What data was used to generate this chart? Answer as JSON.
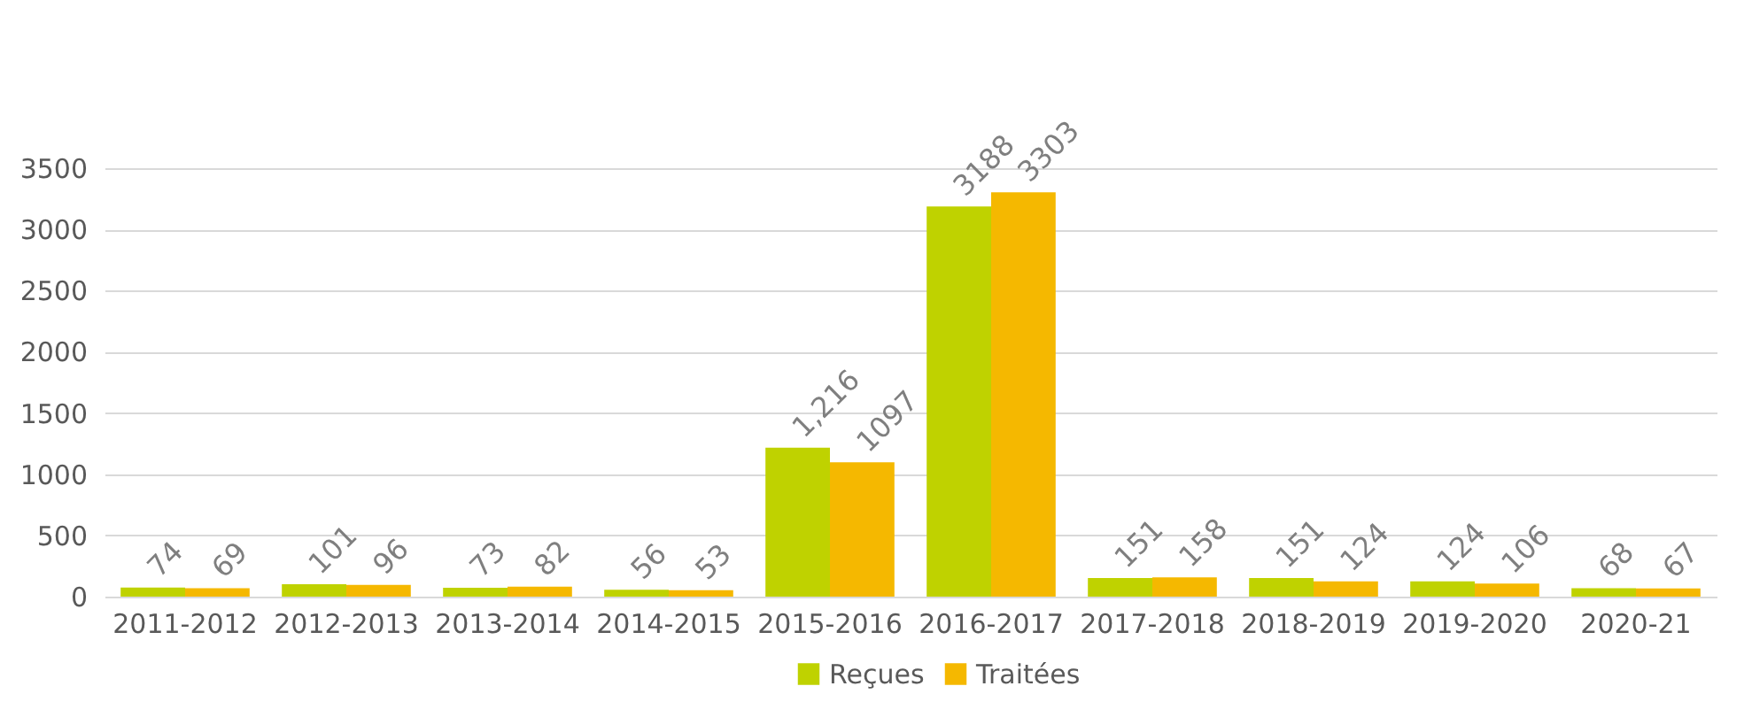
{
  "chart_data": {
    "type": "bar",
    "categories": [
      "2011-2012",
      "2012-2013",
      "2013-2014",
      "2014-2015",
      "2015-2016",
      "2016-2017",
      "2017-2018",
      "2018-2019",
      "2019-2020",
      "2020-21"
    ],
    "series": [
      {
        "name": "Reçues",
        "color": "#bfd200",
        "values": [
          74,
          101,
          73,
          56,
          1216,
          3188,
          151,
          151,
          124,
          68
        ],
        "value_labels": [
          "74",
          "101",
          "73",
          "56",
          "1,216",
          "3188",
          "151",
          "151",
          "124",
          "68"
        ]
      },
      {
        "name": "Traitées",
        "color": "#f5b800",
        "values": [
          69,
          96,
          82,
          53,
          1097,
          3303,
          158,
          124,
          106,
          67
        ],
        "value_labels": [
          "69",
          "96",
          "82",
          "53",
          "1097",
          "3303",
          "158",
          "124",
          "106",
          "67"
        ]
      }
    ],
    "ylim": [
      0,
      3500
    ],
    "yticks": [
      0,
      500,
      1000,
      1500,
      2000,
      2500,
      3000,
      3500
    ],
    "grid": "y",
    "legend": "bottom"
  }
}
